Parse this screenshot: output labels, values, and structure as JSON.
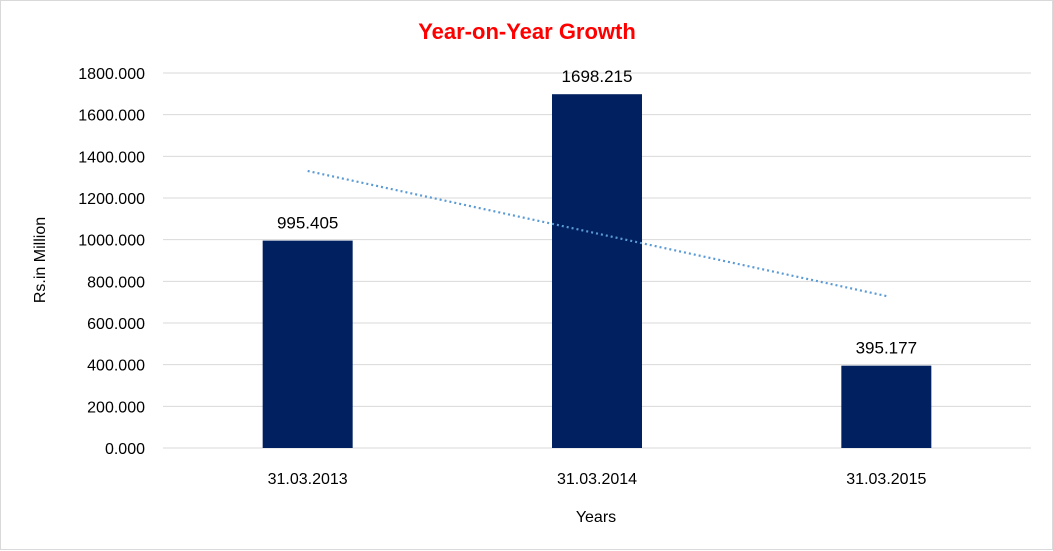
{
  "chart_data": {
    "type": "bar",
    "title": "Year-on-Year Growth",
    "xlabel": "Years",
    "ylabel": "Rs.in Million",
    "categories": [
      "31.03.2013",
      "31.03.2014",
      "31.03.2015"
    ],
    "values": [
      995.405,
      1698.215,
      395.177
    ],
    "data_labels": [
      "995.405",
      "1698.215",
      "395.177"
    ],
    "ylim": [
      0,
      1800
    ],
    "y_ticks": [
      0,
      200,
      400,
      600,
      800,
      1000,
      1200,
      1400,
      1600,
      1800
    ],
    "y_tick_labels": [
      "0.000",
      "200.000",
      "400.000",
      "600.000",
      "800.000",
      "1000.000",
      "1200.000",
      "1400.000",
      "1600.000",
      "1800.000"
    ],
    "grid": true,
    "trendline": {
      "type": "linear",
      "style": "dotted"
    },
    "colors": {
      "bar": "#002060",
      "title": "#ff0000",
      "trendline": "#5b9bd5",
      "grid": "#d9d9d9"
    }
  }
}
